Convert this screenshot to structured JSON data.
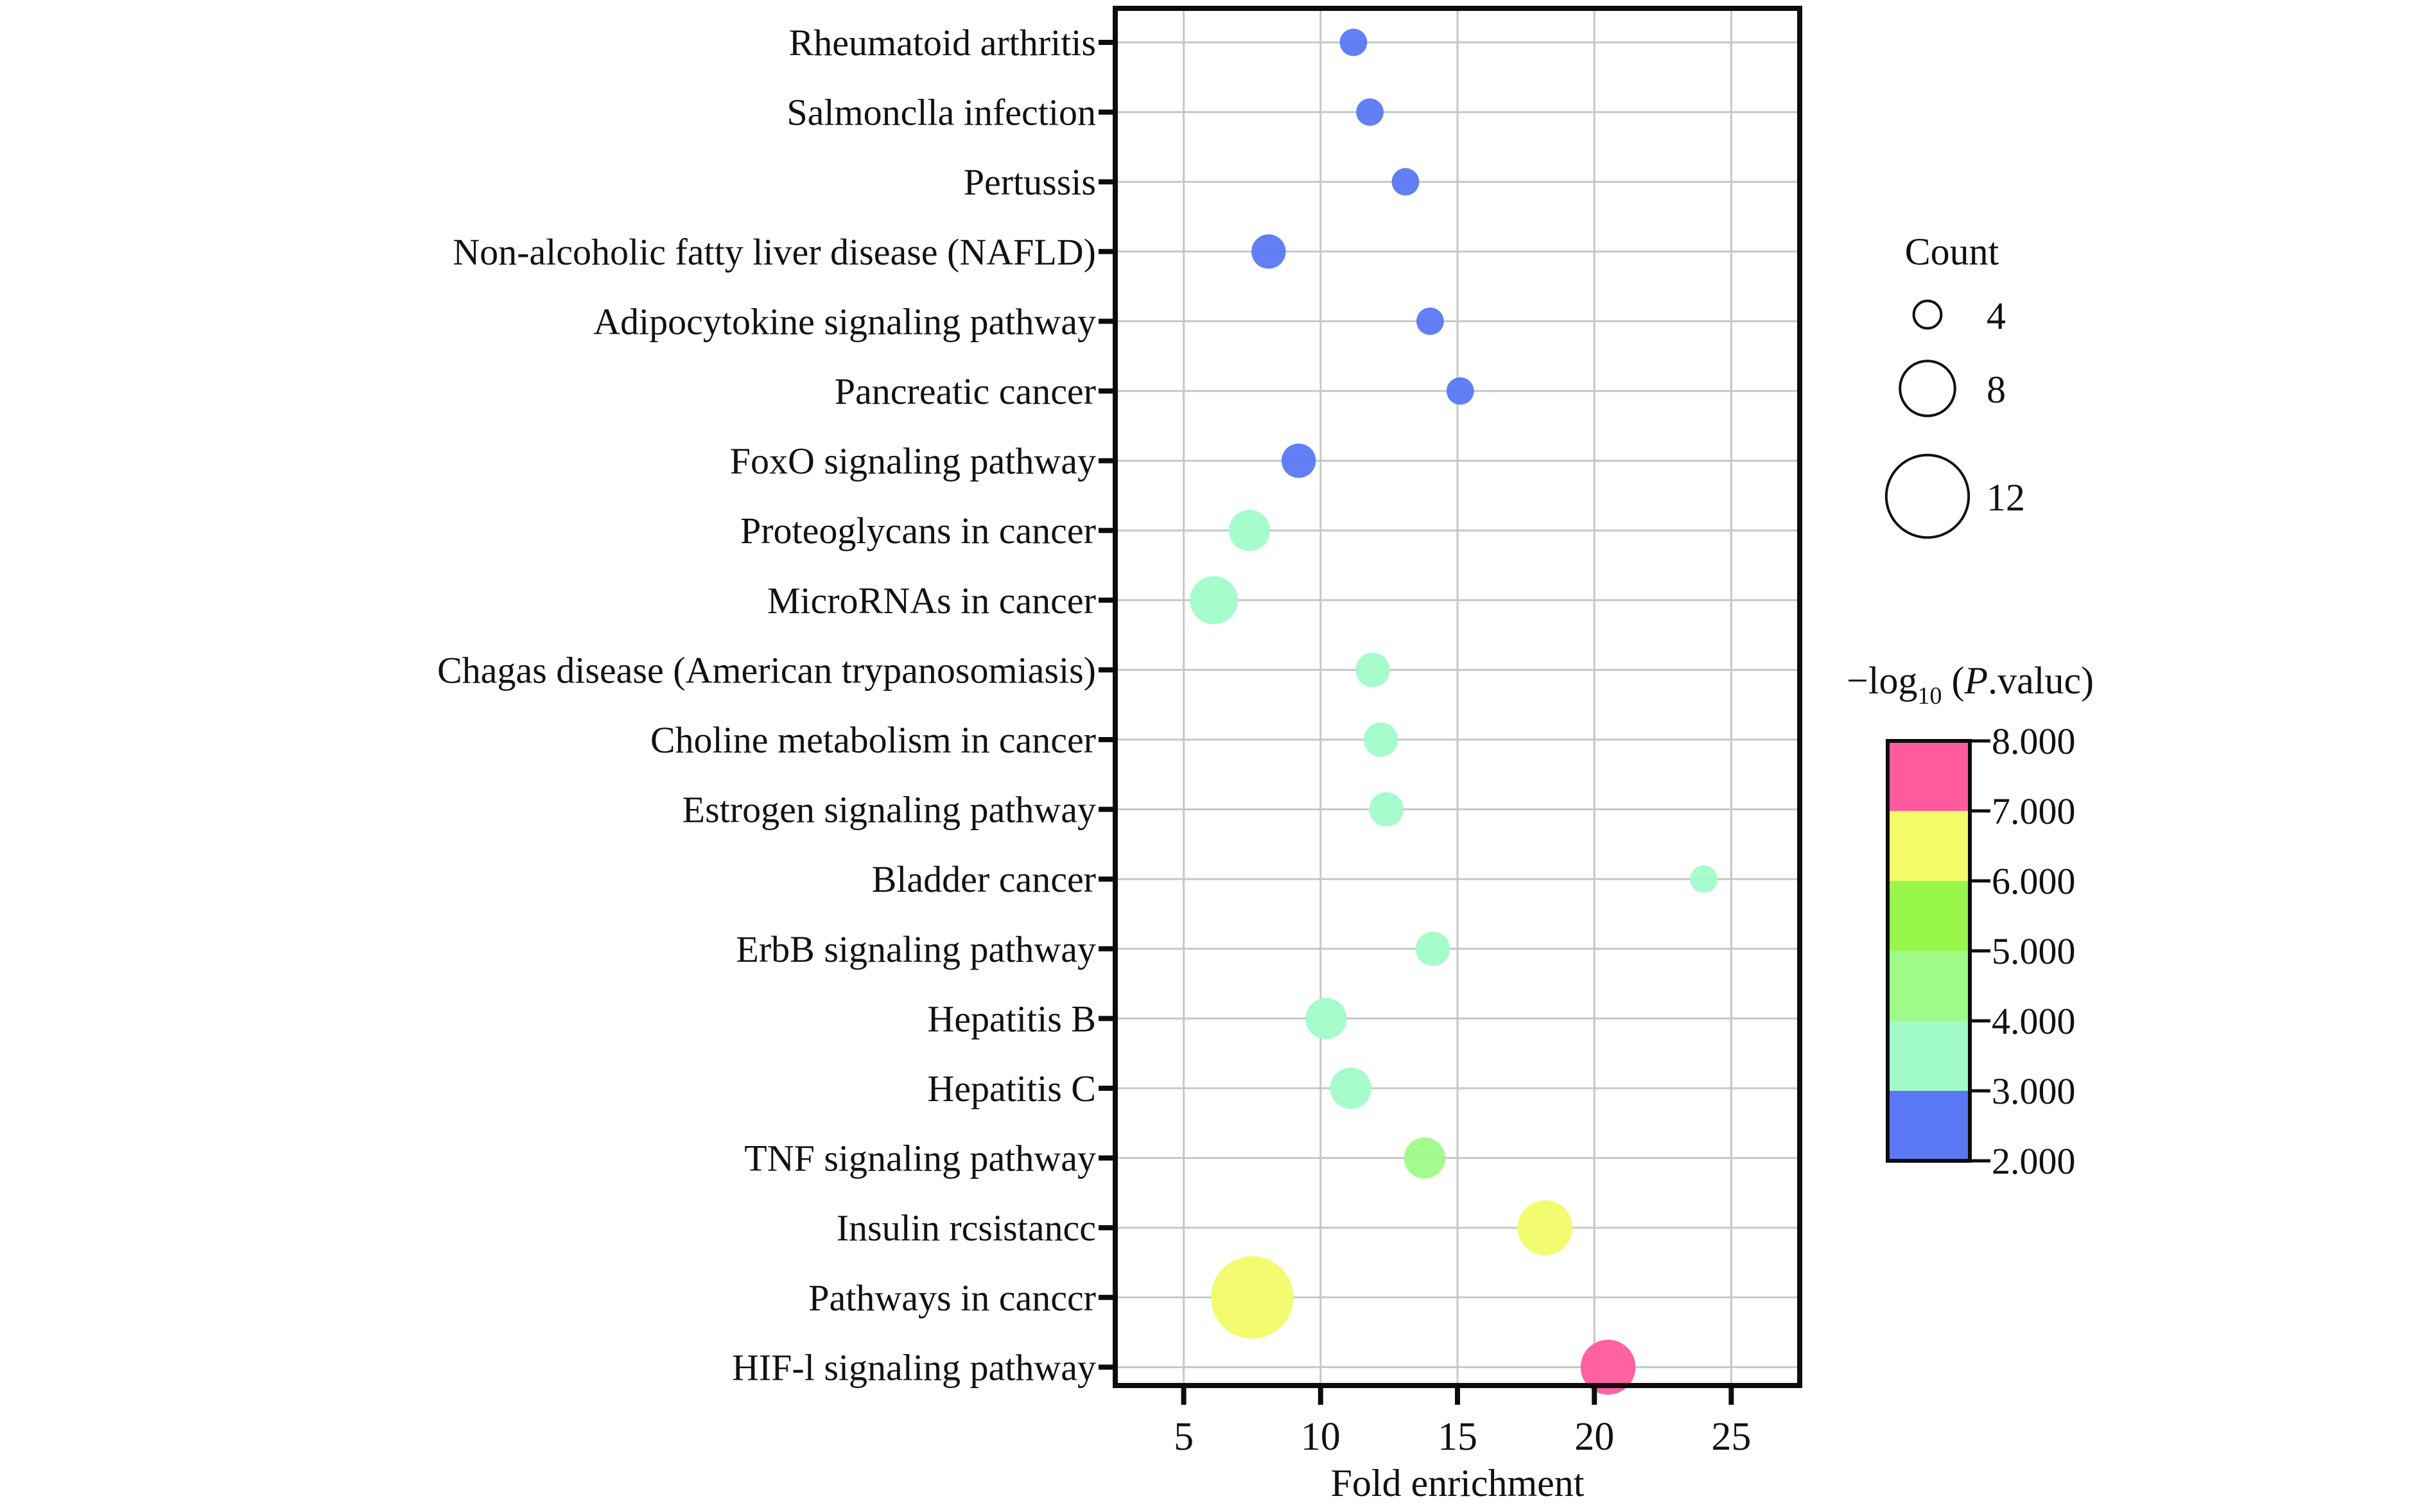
{
  "chart_data": {
    "type": "scatter",
    "subtype": "bubble",
    "title": "",
    "xlabel": "Fold enrichment",
    "ylabel": "",
    "xlim": [
      2.5,
      27.5
    ],
    "xticks": [
      5,
      10,
      15,
      20,
      25
    ],
    "grid": true,
    "categories": [
      "Rheumatoid arthritis",
      "Salmonclla infection",
      "Pertussis",
      "Non-alcoholic fatty liver disease (NAFLD)",
      "Adipocytokine signaling pathway",
      "Pancreatic cancer",
      "FoxO signaling pathway",
      "Proteoglycans in cancer",
      "MicroRNAs in cancer",
      "Chagas disease (American trypanosomiasis)",
      "Choline metabolism in cancer",
      "Estrogen signaling pathway",
      "Bladder cancer",
      "ErbB signaling pathway",
      "Hepatitis B",
      "Hepatitis C",
      "TNF signaling pathway",
      "Insulin rcsistancc",
      "Pathways in canccr",
      "HIF-l signaling pathway"
    ],
    "points": [
      {
        "term": "Rheumatoid arthritis",
        "fold_enrichment": 11.2,
        "count": 4,
        "neg_log10_p": 2.5
      },
      {
        "term": "Salmonclla infection",
        "fold_enrichment": 11.8,
        "count": 4,
        "neg_log10_p": 2.5
      },
      {
        "term": "Pertussis",
        "fold_enrichment": 13.1,
        "count": 4,
        "neg_log10_p": 2.5
      },
      {
        "term": "Non-alcoholic fatty liver disease (NAFLD)",
        "fold_enrichment": 8.1,
        "count": 5,
        "neg_log10_p": 2.5
      },
      {
        "term": "Adipocytokine signaling pathway",
        "fold_enrichment": 14.0,
        "count": 4,
        "neg_log10_p": 2.5
      },
      {
        "term": "Pancreatic cancer",
        "fold_enrichment": 15.1,
        "count": 4,
        "neg_log10_p": 2.5
      },
      {
        "term": "FoxO signaling pathway",
        "fold_enrichment": 9.2,
        "count": 5,
        "neg_log10_p": 2.5
      },
      {
        "term": "Proteoglycans in cancer",
        "fold_enrichment": 7.4,
        "count": 6,
        "neg_log10_p": 3.5
      },
      {
        "term": "MicroRNAs in cancer",
        "fold_enrichment": 6.1,
        "count": 7,
        "neg_log10_p": 3.5
      },
      {
        "term": "Chagas disease (American trypanosomiasis)",
        "fold_enrichment": 11.9,
        "count": 5,
        "neg_log10_p": 3.5
      },
      {
        "term": "Choline metabolism in cancer",
        "fold_enrichment": 12.2,
        "count": 5,
        "neg_log10_p": 3.5
      },
      {
        "term": "Estrogen signaling pathway",
        "fold_enrichment": 12.4,
        "count": 5,
        "neg_log10_p": 3.5
      },
      {
        "term": "Bladder cancer",
        "fold_enrichment": 24.0,
        "count": 4,
        "neg_log10_p": 3.5
      },
      {
        "term": "ErbB signaling pathway",
        "fold_enrichment": 14.1,
        "count": 5,
        "neg_log10_p": 3.5
      },
      {
        "term": "Hepatitis B",
        "fold_enrichment": 10.2,
        "count": 6,
        "neg_log10_p": 3.5
      },
      {
        "term": "Hepatitis C",
        "fold_enrichment": 11.1,
        "count": 6,
        "neg_log10_p": 3.5
      },
      {
        "term": "TNF signaling pathway",
        "fold_enrichment": 13.8,
        "count": 6,
        "neg_log10_p": 4.5
      },
      {
        "term": "Insulin rcsistancc",
        "fold_enrichment": 18.2,
        "count": 8,
        "neg_log10_p": 6.5
      },
      {
        "term": "Pathways in canccr",
        "fold_enrichment": 7.5,
        "count": 12,
        "neg_log10_p": 6.5
      },
      {
        "term": "HIF-l signaling pathway",
        "fold_enrichment": 20.5,
        "count": 8,
        "neg_log10_p": 7.5
      }
    ],
    "size_legend": {
      "title": "Count",
      "values": [
        4,
        8,
        12
      ],
      "labels": [
        "4",
        "8",
        "12"
      ]
    },
    "color_legend": {
      "title_prefix": "−log",
      "title_sub": "10",
      "title_open": " (",
      "title_italic": "P",
      "title_rest": ".valuc)",
      "range": [
        2,
        8
      ],
      "tick_labels": [
        "8.000",
        "7.000",
        "6.000",
        "5.000",
        "4.000",
        "3.000",
        "2.000"
      ],
      "tick_values": [
        8,
        7,
        6,
        5,
        4,
        3,
        2
      ],
      "bins": [
        {
          "from": 2,
          "to": 3,
          "color": "#5b78f4"
        },
        {
          "from": 3,
          "to": 4,
          "color": "#a1fcc8"
        },
        {
          "from": 4,
          "to": 5,
          "color": "#9efb87"
        },
        {
          "from": 5,
          "to": 6,
          "color": "#98f74a"
        },
        {
          "from": 6,
          "to": 7,
          "color": "#f2fc66"
        },
        {
          "from": 7,
          "to": 8,
          "color": "#ff5a9e"
        }
      ]
    }
  }
}
